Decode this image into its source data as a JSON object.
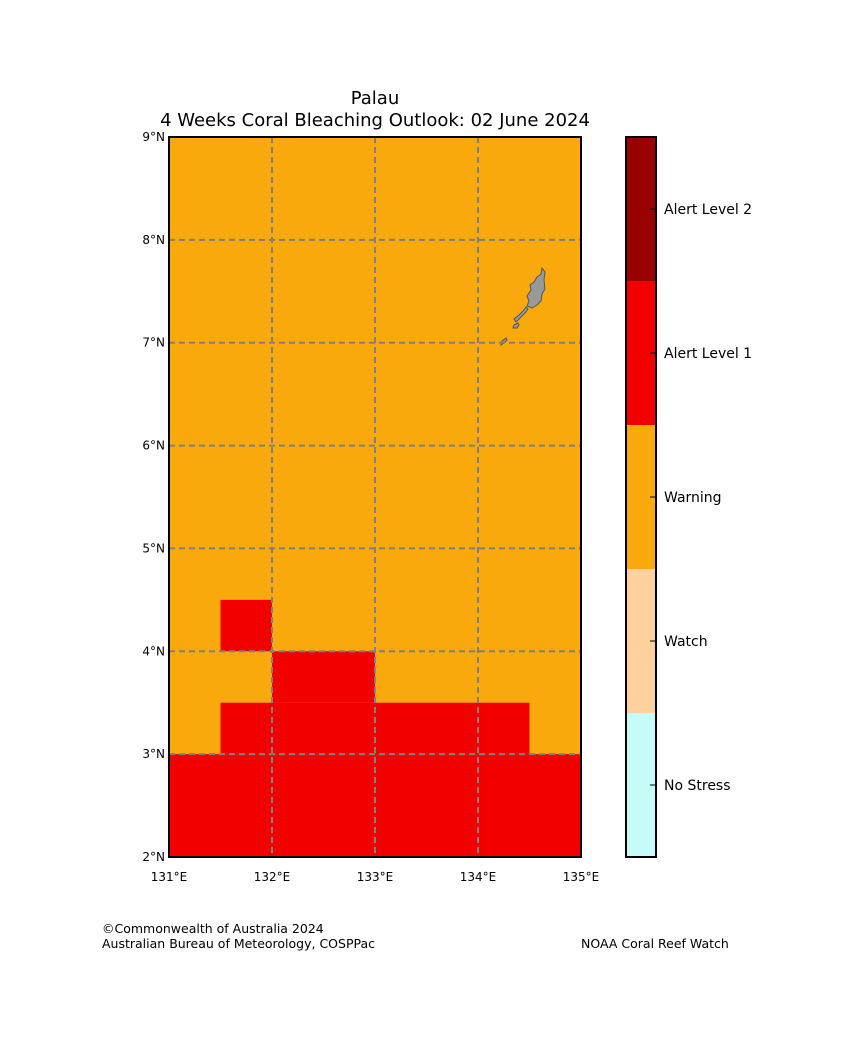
{
  "title_line1": "Palau",
  "title_line2": "4 Weeks Coral Bleaching Outlook: 02 June 2024",
  "credits": {
    "copyright": "©Commonwealth of Australia 2024",
    "org": "Australian Bureau of Meteorology, COSPPac",
    "noaa": "NOAA Coral Reef Watch"
  },
  "map": {
    "lon_range": [
      131,
      135
    ],
    "lat_range": [
      2,
      9
    ],
    "lon_ticks": [
      {
        "value": 131,
        "label": "131°E"
      },
      {
        "value": 132,
        "label": "132°E"
      },
      {
        "value": 133,
        "label": "133°E"
      },
      {
        "value": 134,
        "label": "134°E"
      },
      {
        "value": 135,
        "label": "135°E"
      }
    ],
    "lat_ticks": [
      {
        "value": 2,
        "label": "2°N"
      },
      {
        "value": 3,
        "label": "3°N"
      },
      {
        "value": 4,
        "label": "4°N"
      },
      {
        "value": 5,
        "label": "5°N"
      },
      {
        "value": 6,
        "label": "6°N"
      },
      {
        "value": 7,
        "label": "7°N"
      },
      {
        "value": 8,
        "label": "8°N"
      },
      {
        "value": 9,
        "label": "9°N"
      }
    ],
    "gridlines": "dashed",
    "grid_color": "#808080",
    "background_level": "Warning",
    "alert_cells": [
      {
        "lon": [
          131.5,
          132.0
        ],
        "lat": [
          4.0,
          4.5
        ],
        "level": "Alert Level 1"
      },
      {
        "lon": [
          132.0,
          133.0
        ],
        "lat": [
          3.5,
          4.0
        ],
        "level": "Alert Level 1"
      },
      {
        "lon": [
          131.5,
          134.5
        ],
        "lat": [
          3.0,
          3.5
        ],
        "level": "Alert Level 1"
      },
      {
        "lon": [
          131.0,
          135.0
        ],
        "lat": [
          2.0,
          3.0
        ],
        "level": "Alert Level 1"
      }
    ],
    "land_color": "#999999",
    "land_name": "palau-islands"
  },
  "legend": {
    "levels": [
      {
        "label": "Alert Level 2",
        "color": "#990000"
      },
      {
        "label": "Alert Level 1",
        "color": "#f20000"
      },
      {
        "label": "Warning",
        "color": "#f9a90c"
      },
      {
        "label": "Watch",
        "color": "#ffd19d"
      },
      {
        "label": "No Stress",
        "color": "#c5fcf8"
      }
    ]
  }
}
